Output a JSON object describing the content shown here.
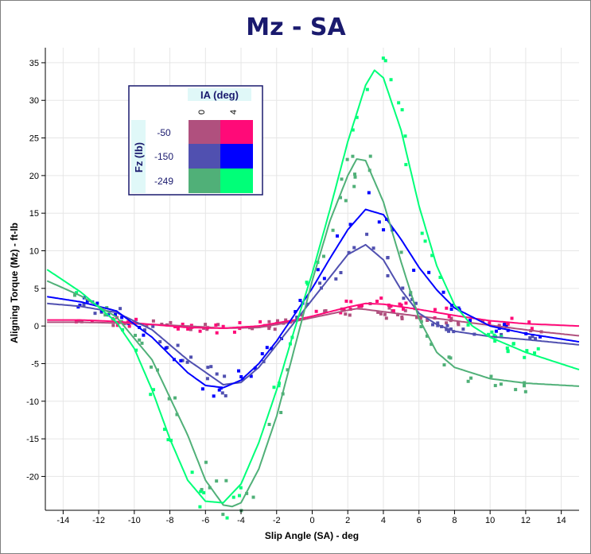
{
  "chart_data": {
    "type": "scatter",
    "title": "Mz - SA",
    "xlabel": "Slip Angle (SA) - deg",
    "ylabel": "Aligning Torque (Mz) - ft-lb",
    "xlim": [
      -15,
      15
    ],
    "ylim": [
      -24.5,
      37
    ],
    "x_ticks": [
      -14,
      -12,
      -10,
      -8,
      -6,
      -4,
      -2,
      0,
      2,
      4,
      6,
      8,
      10,
      12,
      14
    ],
    "y_ticks": [
      -20,
      -15,
      -10,
      -5,
      0,
      5,
      10,
      15,
      20,
      25,
      30,
      35
    ],
    "grid": true,
    "legend": {
      "position": "top-left",
      "column_title": "IA (deg)",
      "row_title": "Fz (lb)",
      "columns": [
        "0",
        "4"
      ],
      "rows": [
        "-50",
        "-150",
        "-249"
      ],
      "swatches": [
        [
          "#b0507e",
          "#ff0a78"
        ],
        [
          "#5050b0",
          "#0000ff"
        ],
        [
          "#50b078",
          "#00ff78"
        ]
      ]
    },
    "series": [
      {
        "fz": "-50",
        "ia": "0",
        "color": "#b0507e",
        "peak": 2.3,
        "peak_x": 2.5,
        "c_left": 0.6,
        "c_right": 0.0,
        "width": 4.2,
        "x": [
          -14.9,
          -13,
          -11,
          -9,
          -7,
          -5,
          -3,
          -1,
          0,
          1,
          2,
          2.5,
          3,
          5,
          7,
          9,
          11,
          13,
          15
        ],
        "y": [
          0.5,
          0.5,
          0.4,
          0.2,
          0.0,
          -0.3,
          -0.2,
          0.6,
          1.1,
          1.6,
          2.1,
          2.3,
          2.2,
          1.6,
          1.0,
          0.4,
          -0.2,
          -0.8,
          -1.3
        ]
      },
      {
        "fz": "-50",
        "ia": "4",
        "color": "#ff0a78",
        "peak": 3.0,
        "peak_x": 3.0,
        "x": [
          -14.9,
          -13,
          -11,
          -9,
          -7,
          -5,
          -3,
          -1,
          0,
          1,
          2,
          3,
          4,
          6,
          8,
          10,
          12,
          14,
          15
        ],
        "y": [
          0.8,
          0.8,
          0.6,
          0.2,
          -0.2,
          -0.3,
          0.0,
          0.8,
          1.3,
          1.9,
          2.5,
          3.0,
          2.9,
          2.2,
          1.4,
          0.7,
          0.3,
          0.1,
          0.0
        ]
      },
      {
        "fz": "-150",
        "ia": "0",
        "color": "#5050b0",
        "x": [
          -14.9,
          -13,
          -11,
          -9,
          -7,
          -5,
          -4,
          -3,
          -2,
          -1,
          0,
          1,
          2,
          3,
          4,
          5,
          6,
          7,
          8,
          10,
          12,
          15
        ],
        "y": [
          3.0,
          2.6,
          1.8,
          -0.5,
          -4.5,
          -7.8,
          -7.5,
          -5.5,
          -2.5,
          0.5,
          3.5,
          6.5,
          9.5,
          10.8,
          8.8,
          4.8,
          1.7,
          0.2,
          -0.7,
          -1.4,
          -1.8,
          -2.5
        ]
      },
      {
        "fz": "-150",
        "ia": "4",
        "color": "#0000ff",
        "x": [
          -14.9,
          -13,
          -11,
          -9,
          -7,
          -6,
          -5,
          -4,
          -3,
          -2,
          -1,
          0,
          1,
          2,
          3,
          4,
          5,
          6,
          7,
          8,
          10,
          12,
          15
        ],
        "y": [
          3.9,
          3.2,
          2.0,
          -1.5,
          -6.2,
          -7.9,
          -8.2,
          -7.2,
          -5.0,
          -2.0,
          1.5,
          5.0,
          9.0,
          12.8,
          15.5,
          14.8,
          11.5,
          7.8,
          4.8,
          2.4,
          0.0,
          -1.0,
          -2.1
        ]
      },
      {
        "fz": "-249",
        "ia": "0",
        "color": "#50b078",
        "x": [
          -14.9,
          -13,
          -11,
          -9,
          -7,
          -6,
          -5,
          -4.5,
          -4,
          -3,
          -2,
          -1,
          0,
          1,
          2,
          2.5,
          3,
          4,
          5,
          6,
          7,
          8,
          10,
          12,
          15
        ],
        "y": [
          6.0,
          4.0,
          1.2,
          -4.5,
          -14.5,
          -20.5,
          -23.8,
          -24.0,
          -23.5,
          -19.0,
          -12.0,
          -3.0,
          6.0,
          14.0,
          20.0,
          22.2,
          22.0,
          16.5,
          8.5,
          1.0,
          -3.5,
          -5.5,
          -7.0,
          -7.6,
          -8.0
        ]
      },
      {
        "fz": "-249",
        "ia": "4",
        "color": "#00ff78",
        "x": [
          -14.9,
          -13,
          -11,
          -10,
          -9,
          -8,
          -7,
          -6,
          -5,
          -4,
          -3,
          -2,
          -1,
          0,
          1,
          2,
          3,
          3.5,
          4,
          5,
          6,
          7,
          8,
          9,
          10,
          12,
          15
        ],
        "y": [
          7.5,
          4.5,
          0.5,
          -3.0,
          -8.5,
          -15.0,
          -20.5,
          -23.3,
          -23.5,
          -21.0,
          -15.5,
          -8.5,
          -0.5,
          7.0,
          15.5,
          24.5,
          32.0,
          34.0,
          33.0,
          26.0,
          16.0,
          8.0,
          2.8,
          0.0,
          -1.5,
          -3.5,
          -5.8
        ]
      }
    ]
  }
}
